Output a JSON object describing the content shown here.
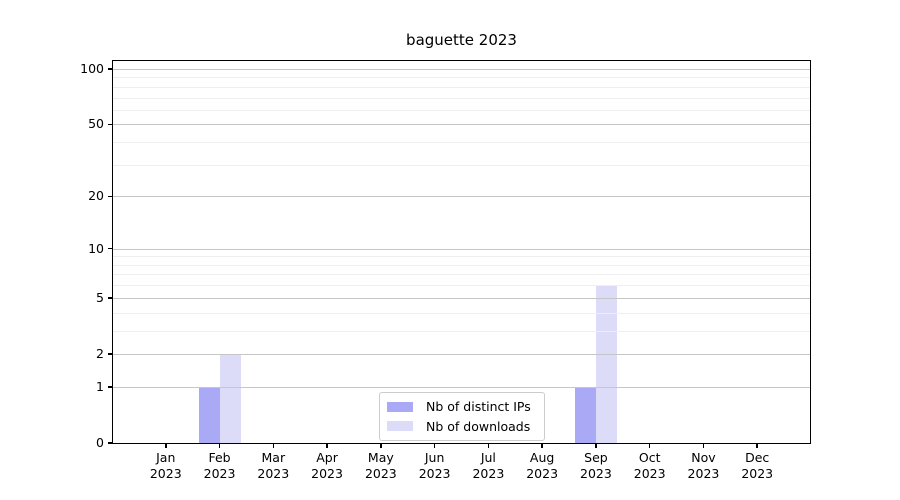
{
  "chart_data": {
    "type": "bar",
    "title": "baguette 2023",
    "categories": [
      "Jan 2023",
      "Feb 2023",
      "Mar 2023",
      "Apr 2023",
      "May 2023",
      "Jun 2023",
      "Jul 2023",
      "Aug 2023",
      "Sep 2023",
      "Oct 2023",
      "Nov 2023",
      "Dec 2023"
    ],
    "series": [
      {
        "name": "Nb of distinct IPs",
        "color": "#a9a9f6",
        "values": [
          0,
          1,
          0,
          0,
          0,
          0,
          0,
          0,
          1,
          0,
          0,
          0
        ]
      },
      {
        "name": "Nb of downloads",
        "color": "#dcdcf8",
        "values": [
          0,
          2,
          0,
          0,
          0,
          0,
          0,
          0,
          6,
          0,
          0,
          0
        ]
      }
    ],
    "yticks": [
      0,
      1,
      2,
      5,
      10,
      20,
      50,
      100
    ],
    "yscale": "log1p",
    "ylim": [
      0,
      110
    ],
    "grid": "horizontal",
    "legend_position": "lower center inside"
  }
}
